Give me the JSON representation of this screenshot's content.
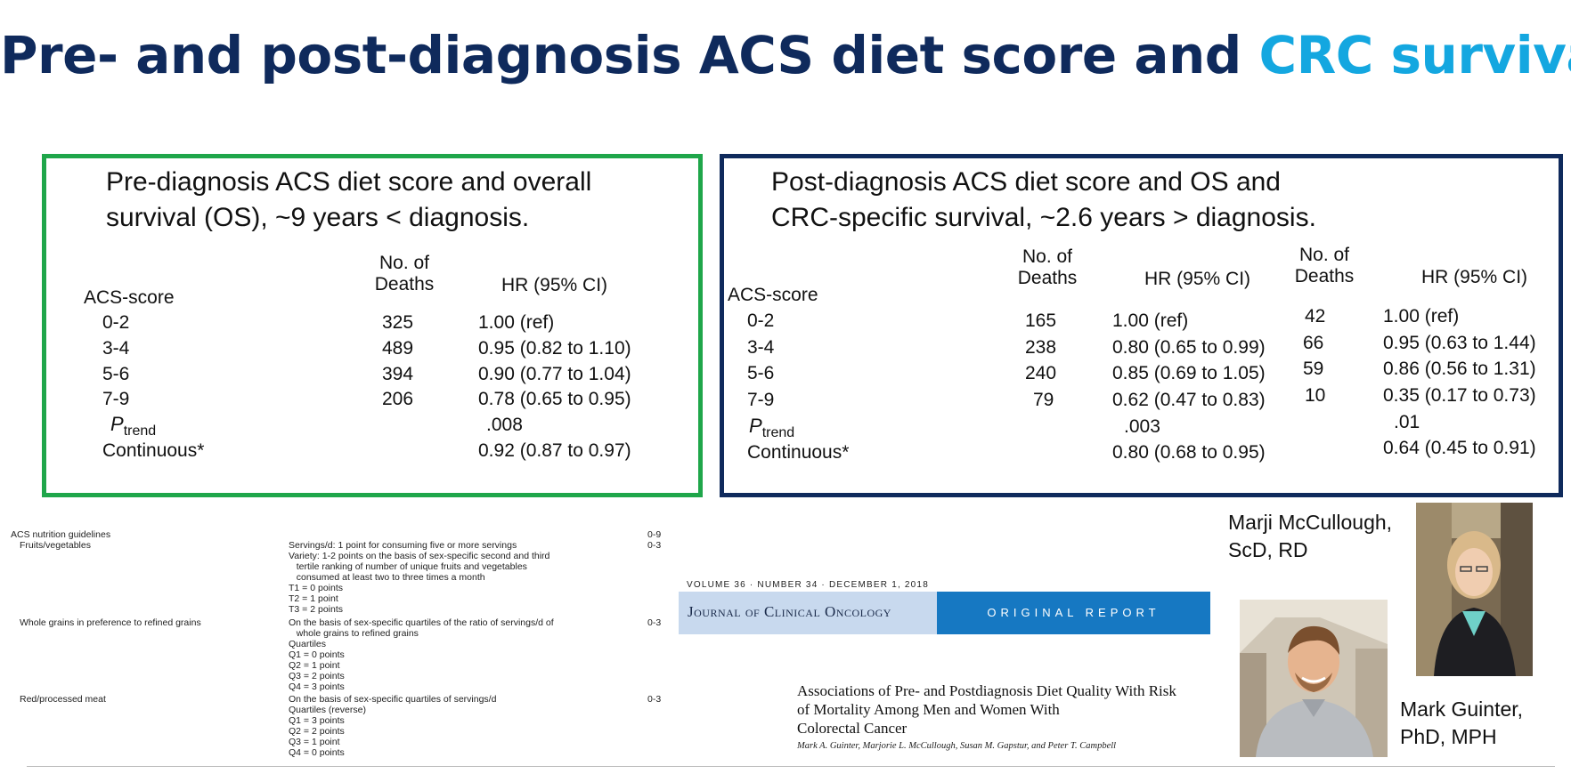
{
  "slide": {
    "title_main": "Pre- and post-diagnosis ACS diet score and ",
    "title_accent": "CRC survival",
    "colors": {
      "title_dark": "#0f2a5c",
      "title_accent": "#14a7e0",
      "pre_box_border": "#1fa64a",
      "post_box_border": "#0f2a5c"
    }
  },
  "pre_box": {
    "heading_line1": "Pre-diagnosis ACS diet score and overall",
    "heading_line2": "survival (OS), ~9 years < diagnosis.",
    "col_deaths": "No. of\nDeaths",
    "col_hr": "HR (95% CI)",
    "row_header": "ACS-score",
    "rows": [
      {
        "label": "0-2",
        "deaths": "325",
        "hr": "1.00 (ref)"
      },
      {
        "label": "3-4",
        "deaths": "489",
        "hr": "0.95 (0.82 to 1.10)"
      },
      {
        "label": "5-6",
        "deaths": "394",
        "hr": "0.90 (0.77 to 1.04)"
      },
      {
        "label": "7-9",
        "deaths": "206",
        "hr": "0.78 (0.65 to 0.95)"
      }
    ],
    "ptrend_p": "P",
    "ptrend_sub": "trend",
    "ptrend_value": ".008",
    "continuous_label": "Continuous*",
    "continuous_hr": "0.92 (0.87 to 0.97)"
  },
  "post_box": {
    "heading_line1": "Post-diagnosis ACS diet score and OS and",
    "heading_line2": "CRC-specific survival, ~2.6 years > diagnosis.",
    "col_deaths": "No. of\nDeaths",
    "col_hr": "HR (95% CI)",
    "row_header": "ACS-score",
    "rows": [
      {
        "label": "0-2",
        "deaths_os": "165",
        "hr_os": "1.00 (ref)",
        "deaths_crc": "42",
        "hr_crc": "1.00 (ref)"
      },
      {
        "label": "3-4",
        "deaths_os": "238",
        "hr_os": "0.80 (0.65 to 0.99)",
        "deaths_crc": "66",
        "hr_crc": "0.95 (0.63 to 1.44)"
      },
      {
        "label": "5-6",
        "deaths_os": "240",
        "hr_os": "0.85 (0.69 to 1.05)",
        "deaths_crc": "59",
        "hr_crc": "0.86 (0.56 to 1.31)"
      },
      {
        "label": "7-9",
        "deaths_os": "79",
        "hr_os": "0.62 (0.47 to 0.83)",
        "deaths_crc": "10",
        "hr_crc": "0.35 (0.17 to 0.73)"
      }
    ],
    "ptrend_p": "P",
    "ptrend_sub": "trend",
    "ptrend_os": ".003",
    "ptrend_crc": ".01",
    "continuous_label": "Continuous*",
    "continuous_os": "0.80 (0.68 to 0.95)",
    "continuous_crc": "0.64 (0.45 to 0.91)"
  },
  "guidelines": {
    "header": "ACS nutrition guidelines",
    "header_points": "0-9",
    "items": [
      {
        "name": "Fruits/vegetables",
        "points": "0-3",
        "lines": [
          "Servings/d: 1 point for consuming five or more servings",
          "Variety: 1-2 points on the basis of sex-specific second and third",
          "   tertile ranking of number of unique fruits and vegetables",
          "   consumed at least two to three times a month",
          "T1 = 0 points",
          "T2 = 1 point",
          "T3 = 2 points"
        ]
      },
      {
        "name": "Whole grains in preference to refined grains",
        "points": "0-3",
        "lines": [
          "On the basis of sex-specific quartiles of the ratio of servings/d of",
          "   whole grains to refined grains",
          "Quartiles",
          "Q1 = 0 points",
          "Q2 = 1 point",
          "Q3 = 2 points",
          "Q4 = 3 points"
        ]
      },
      {
        "name": "Red/processed meat",
        "points": "0-3",
        "lines": [
          "On the basis of sex-specific quartiles of servings/d",
          "Quartiles (reverse)",
          "Q1 = 3 points",
          "Q2 = 2 points",
          "Q3 = 1 point",
          "Q4 = 0 points"
        ]
      }
    ]
  },
  "journal": {
    "volume_line": "VOLUME 36 · NUMBER 34 · DECEMBER 1, 2018",
    "journal_name": "Journal of Clinical Oncology",
    "report_type": "ORIGINAL REPORT",
    "article_title": "Associations of Pre- and Postdiagnosis Diet Quality With Risk\nof Mortality Among Men and Women With\nColorectal Cancer",
    "authors": "Mark A. Guinter, Marjorie L. McCullough, Susan M. Gapstur, and Peter T. Campbell",
    "banner_colors": {
      "left": "#c8d9ee",
      "right": "#1678c2"
    }
  },
  "people": {
    "mccullough_name": "Marji McCullough,\nScD, RD",
    "guinter_name": "Mark Guinter,\nPhD, MPH"
  }
}
